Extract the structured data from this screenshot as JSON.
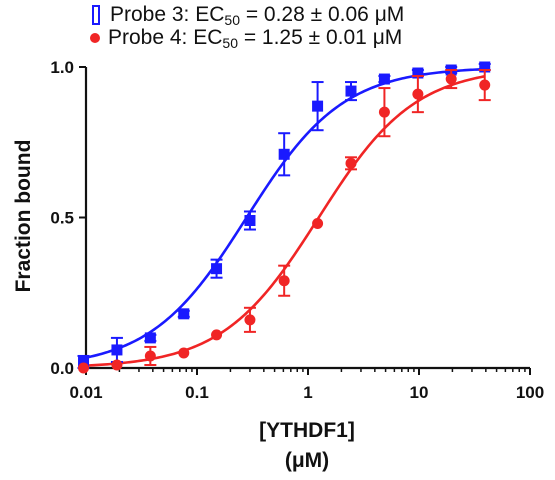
{
  "colors": {
    "series1": "#1a1aff",
    "series2": "#f02525",
    "axis": "#111111"
  },
  "legend": [
    {
      "marker_icon": "open-square-icon",
      "prefix": "Probe 3: EC",
      "sub": "50",
      "suffix": " = 0.28 ± 0.06 μM"
    },
    {
      "marker_icon": "filled-circle-icon",
      "prefix": "Probe 4: EC",
      "sub": "50",
      "suffix": " = 1.25 ± 0.01 μM"
    }
  ],
  "chart_data": {
    "type": "scatter",
    "xlabel": "[YTHDF1]",
    "xunit": "(μM)",
    "ylabel": "Fraction bound",
    "xscale": "log",
    "xlim": [
      0.01,
      100
    ],
    "ylim": [
      0,
      1.0
    ],
    "xticks": [
      0.01,
      0.1,
      1,
      10,
      100
    ],
    "xtick_labels": [
      "0.01",
      "0.1",
      "1",
      "10",
      "100"
    ],
    "yticks": [
      0,
      0.5,
      1.0
    ],
    "ytick_labels": [
      "0.0",
      "0.5",
      "1.0"
    ],
    "grid": false,
    "series": [
      {
        "name": "Probe 3",
        "marker": "square",
        "color": "#1a1aff",
        "ec50": 0.28,
        "ec50_err": 0.06,
        "points": [
          {
            "x": 0.0095,
            "y": 0.02,
            "err": 0.02
          },
          {
            "x": 0.019,
            "y": 0.06,
            "err": 0.04
          },
          {
            "x": 0.038,
            "y": 0.1,
            "err": 0.01
          },
          {
            "x": 0.076,
            "y": 0.18,
            "err": 0.01
          },
          {
            "x": 0.15,
            "y": 0.33,
            "err": 0.03
          },
          {
            "x": 0.3,
            "y": 0.49,
            "err": 0.03
          },
          {
            "x": 0.61,
            "y": 0.71,
            "err": 0.07
          },
          {
            "x": 1.22,
            "y": 0.87,
            "err": 0.08
          },
          {
            "x": 2.44,
            "y": 0.92,
            "err": 0.03
          },
          {
            "x": 4.88,
            "y": 0.96,
            "err": 0.01
          },
          {
            "x": 9.77,
            "y": 0.98,
            "err": 0.01
          },
          {
            "x": 19.5,
            "y": 0.99,
            "err": 0.01
          },
          {
            "x": 39.1,
            "y": 1.0,
            "err": 0.01
          }
        ]
      },
      {
        "name": "Probe 4",
        "marker": "circle",
        "color": "#f02525",
        "ec50": 1.25,
        "ec50_err": 0.01,
        "points": [
          {
            "x": 0.0095,
            "y": 0.0,
            "err": 0.0
          },
          {
            "x": 0.019,
            "y": 0.01,
            "err": 0.0
          },
          {
            "x": 0.038,
            "y": 0.04,
            "err": 0.03
          },
          {
            "x": 0.076,
            "y": 0.05,
            "err": 0.0
          },
          {
            "x": 0.15,
            "y": 0.11,
            "err": 0.0
          },
          {
            "x": 0.3,
            "y": 0.16,
            "err": 0.04
          },
          {
            "x": 0.61,
            "y": 0.29,
            "err": 0.05
          },
          {
            "x": 1.22,
            "y": 0.48,
            "err": 0.0
          },
          {
            "x": 2.44,
            "y": 0.68,
            "err": 0.02
          },
          {
            "x": 4.88,
            "y": 0.85,
            "err": 0.08
          },
          {
            "x": 9.77,
            "y": 0.91,
            "err": 0.06
          },
          {
            "x": 19.5,
            "y": 0.96,
            "err": 0.03
          },
          {
            "x": 39.1,
            "y": 0.94,
            "err": 0.05
          }
        ]
      }
    ]
  }
}
